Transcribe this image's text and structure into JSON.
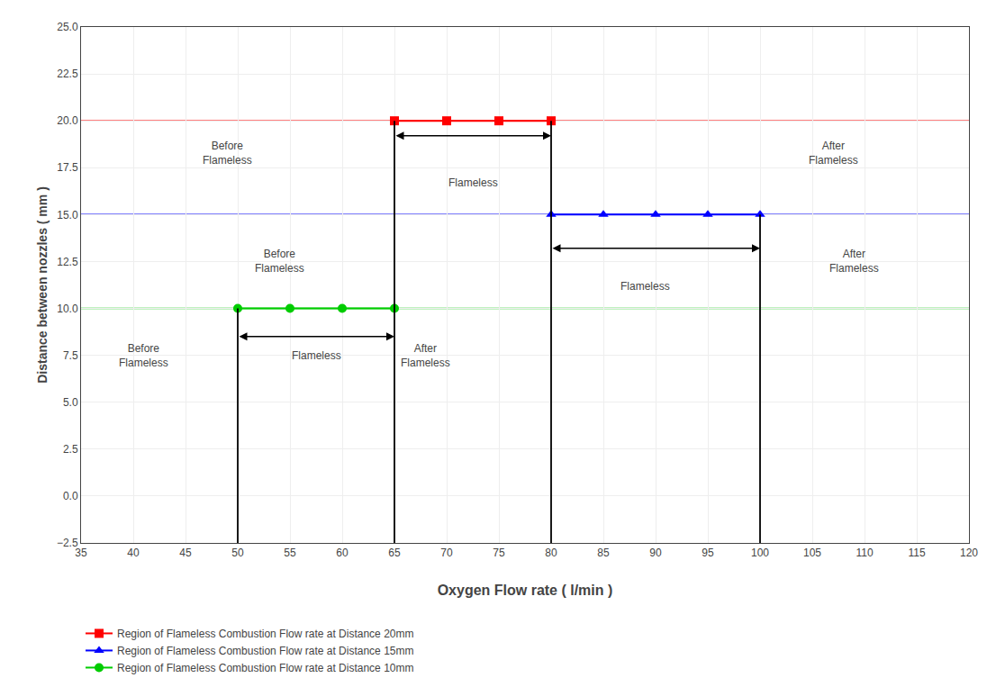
{
  "chart_data": {
    "type": "scatter",
    "xlabel": "Oxygen Flow rate ( l/min )",
    "ylabel": "Distance between nozzles ( mm )",
    "xlim": [
      35,
      120
    ],
    "ylim": [
      -2.5,
      25.0
    ],
    "xticks": [
      35,
      40,
      45,
      50,
      55,
      60,
      65,
      70,
      75,
      80,
      85,
      90,
      95,
      100,
      105,
      110,
      115,
      120
    ],
    "yticks": [
      {
        "value": -2.5,
        "label": "−2.5"
      },
      {
        "value": 0.0,
        "label": "0.0"
      },
      2.5,
      {
        "value": 5.0,
        "label": "5.0"
      },
      7.5,
      {
        "value": 10.0,
        "label": "10.0"
      },
      12.5,
      {
        "value": 15.0,
        "label": "15.0"
      },
      17.5,
      {
        "value": 20.0,
        "label": "20.0"
      },
      22.5,
      {
        "value": 25.0,
        "label": "25.0"
      }
    ],
    "grid": true,
    "legend": "bottom",
    "series": [
      {
        "name": "Region of Flameless Combustion Flow rate at Distance 20mm",
        "color": "#FF0000",
        "marker": "square",
        "x": [
          65,
          70,
          75,
          80
        ],
        "values": [
          20,
          20,
          20,
          20
        ],
        "hline": 20
      },
      {
        "name": "Region of Flameless Combustion Flow rate at Distance 15mm",
        "color": "#0000FF",
        "marker": "triangle",
        "x": [
          80,
          85,
          90,
          95,
          100
        ],
        "values": [
          15,
          15,
          15,
          15,
          15
        ],
        "hline": 15
      },
      {
        "name": "Region of Flameless Combustion Flow rate at Distance 10mm",
        "color": "#00CC00",
        "marker": "circle",
        "x": [
          50,
          55,
          60,
          65
        ],
        "values": [
          10,
          10,
          10,
          10
        ],
        "hline": 10
      }
    ],
    "vlines": [
      {
        "x": 65,
        "y": [
          -2.5,
          20
        ],
        "color": "#000000"
      },
      {
        "x": 80,
        "y": [
          -2.5,
          20
        ],
        "color": "#000000"
      },
      {
        "x": 100,
        "y": [
          -2.5,
          15
        ],
        "color": "#000000"
      },
      {
        "x": 50,
        "y": [
          -2.5,
          10
        ],
        "color": "#000000"
      }
    ],
    "arrows": [
      {
        "x": [
          65,
          80
        ],
        "y": 19.2,
        "color": "#000000"
      },
      {
        "x": [
          80,
          100
        ],
        "y": 13.2,
        "color": "#000000"
      },
      {
        "x": [
          50,
          65
        ],
        "y": 8.5,
        "color": "#000000"
      }
    ],
    "annotations": [
      {
        "text": "Before\nFlameless",
        "x": 49,
        "y": 18.3
      },
      {
        "text": "Flameless",
        "x": 72.5,
        "y": 16.7
      },
      {
        "text": "After\nFlameless",
        "x": 107,
        "y": 18.3
      },
      {
        "text": "Before\nFlameless",
        "x": 54,
        "y": 12.5
      },
      {
        "text": "Flameless",
        "x": 89,
        "y": 11.2
      },
      {
        "text": "After\nFlameless",
        "x": 109,
        "y": 12.5
      },
      {
        "text": "Before\nFlameless",
        "x": 41,
        "y": 7.5
      },
      {
        "text": "Flameless",
        "x": 57.5,
        "y": 7.5
      },
      {
        "text": "After\nFlameless",
        "x": 68,
        "y": 7.5
      }
    ]
  }
}
